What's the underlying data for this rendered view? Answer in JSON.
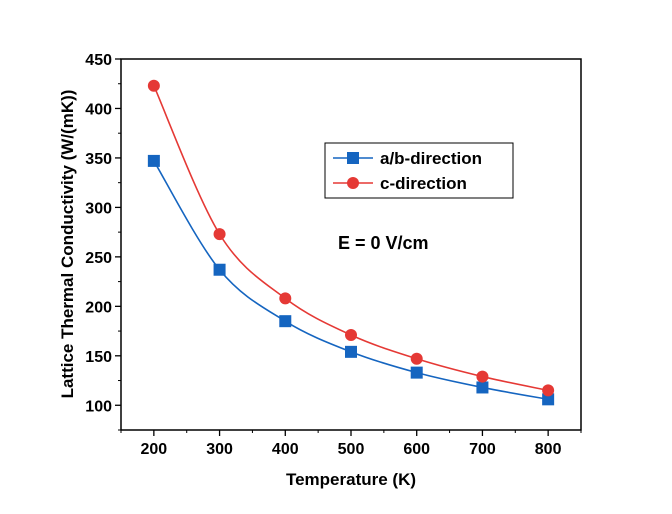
{
  "chart_data": {
    "type": "line",
    "title": "",
    "xlabel": "Temperature (K)",
    "ylabel": "Lattice Thermal Conductivity (W/(mK))",
    "x": [
      200,
      300,
      400,
      500,
      600,
      700,
      800
    ],
    "xlim": [
      150,
      850
    ],
    "ylim": [
      75,
      450
    ],
    "xticks": [
      "200",
      "300",
      "400",
      "500",
      "600",
      "700",
      "800"
    ],
    "yticks": [
      "100",
      "150",
      "200",
      "250",
      "300",
      "350",
      "400",
      "450"
    ],
    "series": [
      {
        "name": "a/b-direction",
        "marker": "square",
        "color": "#1565c0",
        "values": [
          347,
          237,
          185,
          154,
          133,
          118,
          106
        ]
      },
      {
        "name": "c-direction",
        "marker": "circle",
        "color": "#e53935",
        "values": [
          423,
          273,
          208,
          171,
          147,
          129,
          115
        ]
      }
    ],
    "annotation": "E = 0 V/cm",
    "legend_position": "upper-right"
  }
}
